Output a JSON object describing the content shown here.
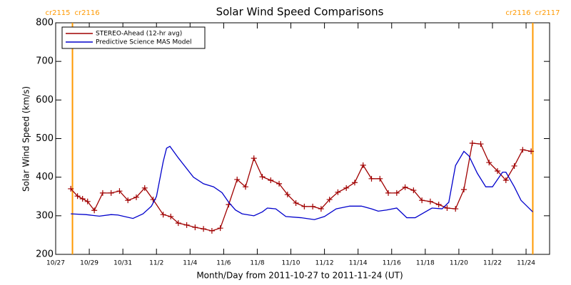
{
  "chart_data": {
    "type": "line",
    "title": "Solar Wind Speed Comparisons",
    "xlabel": "Month/Day from 2011-10-27 to 2011-11-24 (UT)",
    "ylabel": "Solar Wind Speed (km/s)",
    "xlim": [
      0,
      29.4
    ],
    "xticks": [
      {
        "value": 0,
        "label": "10/27"
      },
      {
        "value": 2,
        "label": "10/29"
      },
      {
        "value": 4,
        "label": "10/31"
      },
      {
        "value": 6,
        "label": "11/2"
      },
      {
        "value": 8,
        "label": "11/4"
      },
      {
        "value": 10,
        "label": "11/6"
      },
      {
        "value": 12,
        "label": "11/8"
      },
      {
        "value": 14,
        "label": "11/10"
      },
      {
        "value": 16,
        "label": "11/12"
      },
      {
        "value": 18,
        "label": "11/14"
      },
      {
        "value": 20,
        "label": "11/16"
      },
      {
        "value": 22,
        "label": "11/18"
      },
      {
        "value": 24,
        "label": "11/20"
      },
      {
        "value": 26,
        "label": "11/22"
      },
      {
        "value": 28,
        "label": "11/24"
      }
    ],
    "ylim": [
      200,
      800
    ],
    "yticks": [
      200,
      300,
      400,
      500,
      600,
      700,
      800
    ],
    "legend": "upper left",
    "vlines": [
      {
        "x": 1.0,
        "color": "#ff9900",
        "labels": [
          "cr2115",
          "cr2116"
        ]
      },
      {
        "x": 28.4,
        "color": "#ff9900",
        "labels": [
          "cr2116",
          "cr2117"
        ]
      }
    ],
    "series": [
      {
        "name": "STEREO-Ahead (12-hr avg)",
        "color": "#a00000",
        "marker": "+",
        "x": [
          0.9,
          1.3,
          1.6,
          1.9,
          2.3,
          2.8,
          3.3,
          3.8,
          4.3,
          4.8,
          5.3,
          5.8,
          6.4,
          6.85,
          7.3,
          7.8,
          8.3,
          8.8,
          9.3,
          9.8,
          10.3,
          10.8,
          11.3,
          11.8,
          12.3,
          12.8,
          13.3,
          13.8,
          14.3,
          14.8,
          15.3,
          15.8,
          16.3,
          16.8,
          17.3,
          17.8,
          18.3,
          18.8,
          19.3,
          19.8,
          20.3,
          20.8,
          21.3,
          21.8,
          22.3,
          22.8,
          23.3,
          23.8,
          24.3,
          24.8,
          25.3,
          25.8,
          26.3,
          26.8,
          27.3,
          27.8,
          28.3
        ],
        "values": [
          370,
          351,
          344,
          337,
          314,
          359,
          359,
          364,
          340,
          348,
          372,
          342,
          303,
          298,
          281,
          276,
          270,
          266,
          261,
          268,
          329,
          394,
          375,
          449,
          401,
          392,
          383,
          355,
          333,
          324,
          324,
          318,
          342,
          361,
          372,
          386,
          431,
          396,
          396,
          359,
          359,
          374,
          366,
          340,
          337,
          329,
          320,
          318,
          368,
          488,
          486,
          438,
          416,
          392,
          429,
          471,
          467
        ]
      },
      {
        "name": "Predictive Science MAS Model",
        "color": "#0000cc",
        "x": [
          0.9,
          1.8,
          2.6,
          3.3,
          3.7,
          4.6,
          5.2,
          5.7,
          6.0,
          6.4,
          6.6,
          6.8,
          7.3,
          8.2,
          8.8,
          9.4,
          9.9,
          10.3,
          10.7,
          11.1,
          11.8,
          12.3,
          12.6,
          13.1,
          13.7,
          14.6,
          15.4,
          16.0,
          16.7,
          17.5,
          18.2,
          18.8,
          19.2,
          19.7,
          20.3,
          20.9,
          21.4,
          22.0,
          22.4,
          23.0,
          23.4,
          23.8,
          24.3,
          24.6,
          25.1,
          25.6,
          26.0,
          26.6,
          26.8,
          27.3,
          27.7,
          28.4
        ],
        "values": [
          305,
          303,
          299,
          303,
          302,
          293,
          305,
          325,
          350,
          440,
          475,
          480,
          450,
          400,
          383,
          375,
          360,
          335,
          315,
          305,
          300,
          310,
          320,
          318,
          298,
          295,
          290,
          298,
          318,
          325,
          325,
          318,
          312,
          315,
          320,
          295,
          295,
          310,
          320,
          318,
          335,
          430,
          467,
          455,
          410,
          375,
          375,
          413,
          413,
          375,
          340,
          310
        ]
      }
    ]
  }
}
